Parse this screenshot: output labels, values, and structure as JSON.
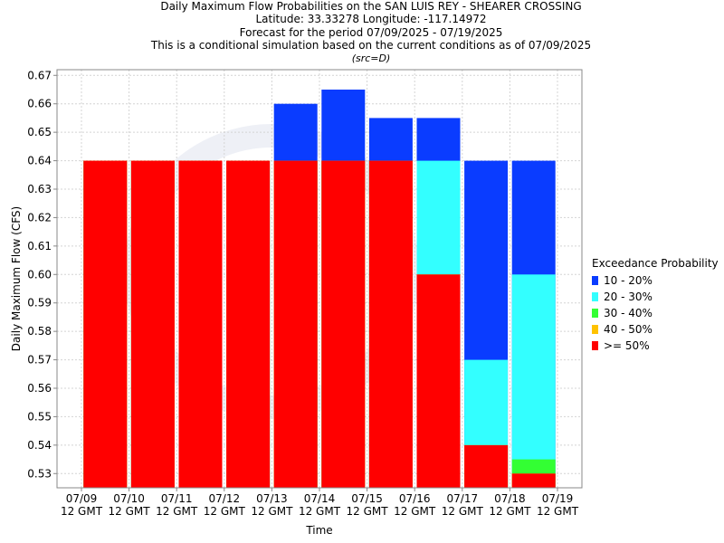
{
  "chart_data": {
    "type": "bar",
    "title_lines": [
      "Daily Maximum Flow Probabilities on the SAN LUIS REY - SHEARER CROSSING",
      "Latitude: 33.33278 Longitude: -117.14972",
      "Forecast for the period 07/09/2025 - 07/19/2025",
      "This is a conditional simulation based on the current conditions as of 07/09/2025"
    ],
    "subtitle": "(src=D)",
    "xlabel": "Time",
    "ylabel": "Daily Maximum Flow (CFS)",
    "ylim": [
      0.525,
      0.672
    ],
    "yticks": [
      "0.53",
      "0.54",
      "0.55",
      "0.56",
      "0.57",
      "0.58",
      "0.59",
      "0.60",
      "0.61",
      "0.62",
      "0.63",
      "0.64",
      "0.65",
      "0.66",
      "0.67"
    ],
    "xticks": [
      [
        "07/09",
        "12 GMT"
      ],
      [
        "07/10",
        "12 GMT"
      ],
      [
        "07/11",
        "12 GMT"
      ],
      [
        "07/12",
        "12 GMT"
      ],
      [
        "07/13",
        "12 GMT"
      ],
      [
        "07/14",
        "12 GMT"
      ],
      [
        "07/15",
        "12 GMT"
      ],
      [
        "07/16",
        "12 GMT"
      ],
      [
        "07/17",
        "12 GMT"
      ],
      [
        "07/18",
        "12 GMT"
      ],
      [
        "07/19",
        "12 GMT"
      ]
    ],
    "grid": true,
    "legend_placement": "right",
    "legend_title": "Exceedance Probability",
    "series": [
      {
        "name": "10 - 20%",
        "color": "#0a3cff",
        "values": [
          0.64,
          0.64,
          0.64,
          0.64,
          0.66,
          0.665,
          0.655,
          0.655,
          0.64,
          0.64
        ]
      },
      {
        "name": "20 - 30%",
        "color": "#33ffff",
        "values": [
          0.64,
          0.64,
          0.64,
          0.64,
          0.64,
          0.64,
          0.64,
          0.64,
          0.57,
          0.6
        ]
      },
      {
        "name": "30 - 40%",
        "color": "#33ff33",
        "values": [
          0.64,
          0.64,
          0.64,
          0.64,
          0.64,
          0.64,
          0.64,
          0.6,
          0.54,
          0.535
        ]
      },
      {
        "name": "40 - 50%",
        "color": "#ffc200",
        "values": [
          0.64,
          0.64,
          0.64,
          0.64,
          0.64,
          0.64,
          0.64,
          0.6,
          0.54,
          0.53
        ]
      },
      {
        "name": ">= 50%",
        "color": "#ff0000",
        "values": [
          0.64,
          0.64,
          0.64,
          0.64,
          0.64,
          0.64,
          0.64,
          0.6,
          0.54,
          0.53
        ]
      }
    ]
  }
}
